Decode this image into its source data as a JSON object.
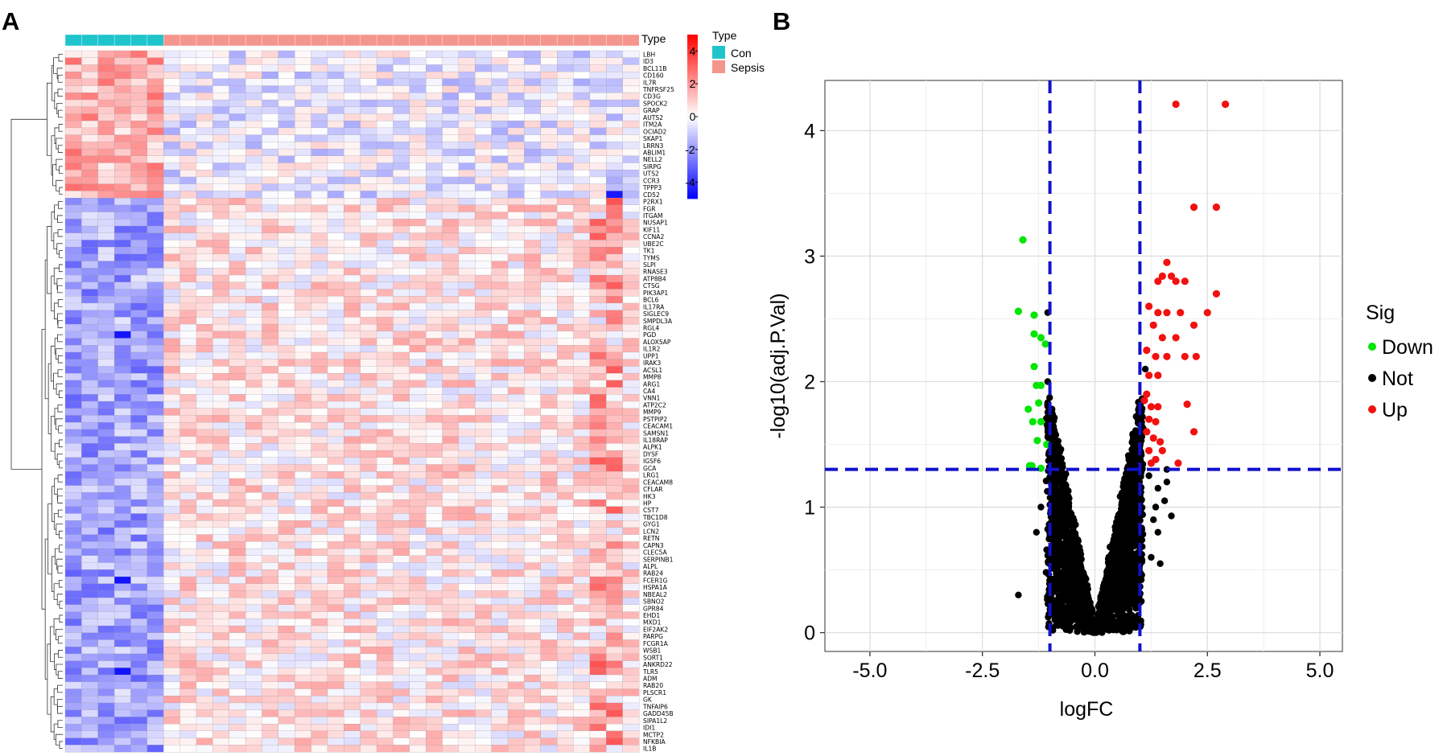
{
  "panels": {
    "a": "A",
    "b": "B"
  },
  "chart_data": [
    {
      "type": "heatmap",
      "title": "",
      "column_annotation": {
        "label": "Type",
        "groups": [
          {
            "name": "Con",
            "count": 6,
            "color": "#20C5CC"
          },
          {
            "name": "Sepsis",
            "count": 29,
            "color": "#F4958E"
          }
        ]
      },
      "color_scale": {
        "min": -5,
        "max": 5,
        "ticks": [
          "4",
          "2",
          "0",
          "-2",
          "-4"
        ],
        "low_color": "#0000FF",
        "mid_color": "#FFFFFF",
        "high_color": "#FF0000"
      },
      "legend": {
        "title": "Type",
        "items": [
          "Con",
          "Sepsis"
        ],
        "placement": "top-right"
      },
      "genes": [
        "LBH",
        "ID3",
        "BCL11B",
        "CD160",
        "IL7R",
        "TNFRSF25",
        "CD3G",
        "SPOCK2",
        "GRAP",
        "AUTS2",
        "ITM2A",
        "OCIAD2",
        "SKAP1",
        "LRRN3",
        "ABLIM1",
        "NELL2",
        "SIRPG",
        "UTS2",
        "CCR3",
        "TPPP3",
        "CD52",
        "P2RX1",
        "FGR",
        "ITGAM",
        "NUSAP1",
        "KIF11",
        "CCNA2",
        "UBE2C",
        "TK1",
        "TYMS",
        "SLPI",
        "RNASE3",
        "ATP8B4",
        "CTSG",
        "PIK3AP1",
        "BCL6",
        "IL17RA",
        "SIGLEC9",
        "SMPDL3A",
        "RGL4",
        "PGD",
        "ALOX5AP",
        "IL1R2",
        "UPP1",
        "IRAK3",
        "ACSL1",
        "MMP8",
        "ARG1",
        "CA4",
        "VNN1",
        "ATP2C2",
        "MMP9",
        "PSTPIP2",
        "CEACAM1",
        "SAMSN1",
        "IL18RAP",
        "ALPK1",
        "DYSF",
        "IGSF6",
        "GCA",
        "LRG1",
        "CEACAM8",
        "CFLAR",
        "HK3",
        "HP",
        "CST7",
        "TBC1D8",
        "GYG1",
        "LCN2",
        "RETN",
        "CAPN3",
        "CLEC5A",
        "SERPINB1",
        "ALPL",
        "RAB24",
        "FCER1G",
        "HSPA1A",
        "NBEAL2",
        "SBNO2",
        "GPR84",
        "EHD1",
        "MXD1",
        "EIF2AK2",
        "PARPG",
        "FCGR1A",
        "WSB1",
        "SORT1",
        "ANKRD22",
        "TLR5",
        "ADM",
        "RAB20",
        "PLSCR1",
        "GK",
        "TNFAIP6",
        "GADD45B",
        "SIPA1L2",
        "IDI1",
        "MCTP2",
        "NFKBIA",
        "IL1B"
      ]
    },
    {
      "type": "scatter",
      "title": "",
      "xlabel": "logFC",
      "ylabel": "-log10(adj.P.Val)",
      "xlim": [
        -6,
        5.5
      ],
      "ylim": [
        -0.15,
        4.4
      ],
      "xticks": [
        -5.0,
        -2.5,
        0.0,
        2.5,
        5.0
      ],
      "xtick_labels": [
        "-5.0",
        "-2.5",
        "0.0",
        "2.5",
        "5.0"
      ],
      "yticks": [
        0,
        1,
        2,
        3,
        4
      ],
      "ytick_labels": [
        "0",
        "1",
        "2",
        "3",
        "4"
      ],
      "thresholds": {
        "logFC": [
          -1,
          1
        ],
        "neglog10p": 1.301
      },
      "grid": true,
      "legend": {
        "title": "Sig",
        "placement": "right",
        "items": [
          {
            "name": "Down",
            "color": "#00E600"
          },
          {
            "name": "Not",
            "color": "#000000"
          },
          {
            "name": "Up",
            "color": "#F21010"
          }
        ]
      },
      "series": [
        {
          "name": "Down",
          "color": "#00E600",
          "points": [
            [
              -1.6,
              3.13
            ],
            [
              -1.7,
              2.56
            ],
            [
              -1.35,
              2.53
            ],
            [
              -1.35,
              2.38
            ],
            [
              -1.2,
              2.35
            ],
            [
              -1.1,
              2.3
            ],
            [
              -1.35,
              2.12
            ],
            [
              -1.3,
              1.97
            ],
            [
              -1.2,
              1.97
            ],
            [
              -1.48,
              1.78
            ],
            [
              -1.25,
              1.83
            ],
            [
              -1.38,
              1.68
            ],
            [
              -1.2,
              1.68
            ],
            [
              -1.28,
              1.53
            ],
            [
              -1.07,
              1.5
            ],
            [
              -1.45,
              1.33
            ],
            [
              -1.4,
              1.33
            ],
            [
              -1.2,
              1.31
            ]
          ]
        },
        {
          "name": "Up",
          "color": "#F21010",
          "points": [
            [
              1.8,
              4.21
            ],
            [
              2.9,
              4.21
            ],
            [
              2.2,
              3.39
            ],
            [
              2.7,
              3.39
            ],
            [
              1.6,
              2.95
            ],
            [
              1.5,
              2.84
            ],
            [
              1.7,
              2.84
            ],
            [
              1.4,
              2.8
            ],
            [
              1.8,
              2.8
            ],
            [
              2.0,
              2.8
            ],
            [
              2.7,
              2.7
            ],
            [
              2.5,
              2.55
            ],
            [
              1.2,
              2.6
            ],
            [
              1.4,
              2.55
            ],
            [
              1.6,
              2.55
            ],
            [
              1.9,
              2.55
            ],
            [
              2.2,
              2.45
            ],
            [
              1.3,
              2.45
            ],
            [
              1.5,
              2.35
            ],
            [
              1.8,
              2.35
            ],
            [
              1.15,
              2.25
            ],
            [
              1.35,
              2.2
            ],
            [
              1.6,
              2.2
            ],
            [
              2.0,
              2.2
            ],
            [
              2.25,
              2.2
            ],
            [
              1.2,
              2.05
            ],
            [
              1.4,
              2.05
            ],
            [
              1.15,
              1.9
            ],
            [
              1.1,
              1.85
            ],
            [
              1.25,
              1.8
            ],
            [
              1.4,
              1.8
            ],
            [
              2.05,
              1.82
            ],
            [
              1.2,
              1.7
            ],
            [
              1.35,
              1.68
            ],
            [
              1.15,
              1.6
            ],
            [
              1.3,
              1.55
            ],
            [
              1.45,
              1.52
            ],
            [
              1.2,
              1.45
            ],
            [
              1.5,
              1.45
            ],
            [
              1.35,
              1.38
            ],
            [
              1.25,
              1.35
            ],
            [
              2.2,
              1.6
            ],
            [
              1.85,
              1.35
            ]
          ]
        }
      ]
    }
  ]
}
